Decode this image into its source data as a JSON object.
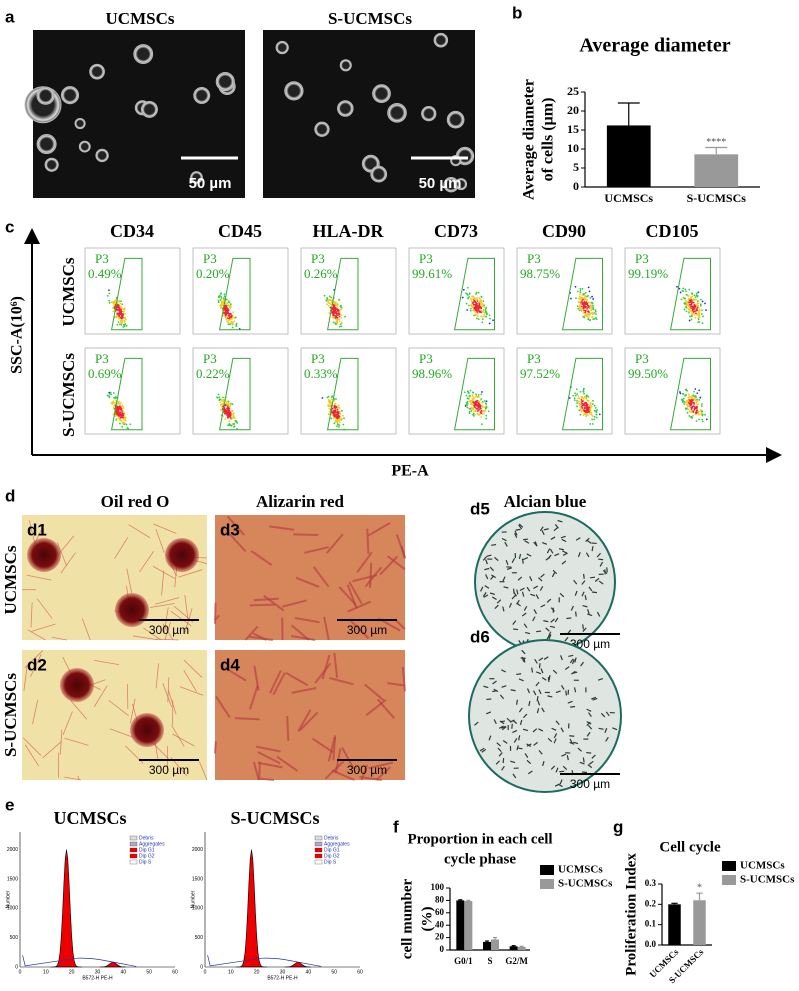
{
  "panel_labels": [
    "a",
    "b",
    "c",
    "d",
    "e",
    "f",
    "g"
  ],
  "micrographs": {
    "titles": [
      "UCMSCs",
      "S-UCMSCs"
    ],
    "scale_bar": "50 µm"
  },
  "flow": {
    "columns": [
      "CD34",
      "CD45",
      "HLA-DR",
      "CD73",
      "CD90",
      "CD105"
    ],
    "rows": [
      "UCMSCs",
      "S-UCMSCs"
    ],
    "gate": "P3",
    "percentages": [
      [
        "0.49%",
        "0.20%",
        "0.26%",
        "99.61%",
        "98.75%",
        "99.19%"
      ],
      [
        "0.69%",
        "0.22%",
        "0.33%",
        "98.96%",
        "97.52%",
        "99.50%"
      ]
    ],
    "y_axis": "SSC-A(10⁶)",
    "x_axis": "PE-A"
  },
  "staining": {
    "stains": [
      "Oil red O",
      "Alizarin red",
      "Alcian blue"
    ],
    "rows": [
      "UCMSCs",
      "S-UCMSCs"
    ],
    "sublabels": [
      "d1",
      "d2",
      "d3",
      "d4",
      "d5",
      "d6"
    ],
    "scale_bar": "300 µm"
  },
  "histograms": {
    "titles": [
      "UCMSCs",
      "S-UCMSCs"
    ],
    "y_label": "Number",
    "x_label": "B572-H PE-H",
    "legend": [
      "Debris",
      "Aggregates",
      "Dip G1",
      "Dip G2",
      "Dip S"
    ],
    "xticks": [
      0,
      10,
      20,
      30,
      40,
      50,
      60
    ],
    "yticks": [
      0,
      500,
      1000,
      1500,
      2000
    ]
  },
  "chart_data": [
    {
      "type": "bar",
      "title": "Average diameter",
      "ylabel": [
        "Average diameter",
        "of cells (µm)"
      ],
      "categories": [
        "UCMSCs",
        "S-UCMSCs"
      ],
      "values": [
        16.2,
        8.6
      ],
      "errors": [
        5.9,
        1.8
      ],
      "colors": [
        "#000000",
        "#999999"
      ],
      "significance": [
        null,
        "****"
      ],
      "ylim": [
        0,
        25
      ],
      "yticks": [
        0,
        5,
        10,
        15,
        20,
        25
      ]
    },
    {
      "type": "bar",
      "title": [
        "Proportion in each cell",
        "cycle phase"
      ],
      "ylabel": [
        "cell mumber",
        "(%)"
      ],
      "categories": [
        "G0/1",
        "S",
        "G2/M"
      ],
      "series": [
        {
          "name": "UCMSCs",
          "color": "#000000",
          "values": [
            80,
            13,
            6
          ],
          "errors": [
            1,
            1.5,
            1
          ]
        },
        {
          "name": "S-UCMSCs",
          "color": "#999999",
          "values": [
            79,
            17,
            5
          ],
          "errors": [
            1,
            3,
            1
          ]
        }
      ],
      "ylim": [
        0,
        100
      ],
      "yticks": [
        0,
        20,
        40,
        60,
        80,
        100
      ]
    },
    {
      "type": "bar",
      "title": "Cell cycle",
      "ylabel": "Proliferation Index",
      "categories": [
        "UCMSCs",
        "S-UCMSCs"
      ],
      "values": [
        0.2,
        0.22
      ],
      "errors": [
        0.005,
        0.035
      ],
      "colors": [
        "#000000",
        "#999999"
      ],
      "significance": [
        null,
        "*"
      ],
      "legend": true,
      "ylim": [
        0,
        0.3
      ],
      "yticks": [
        {
          "value": 0,
          "label": "0.0"
        },
        0.1,
        0.2,
        0.3
      ]
    }
  ]
}
